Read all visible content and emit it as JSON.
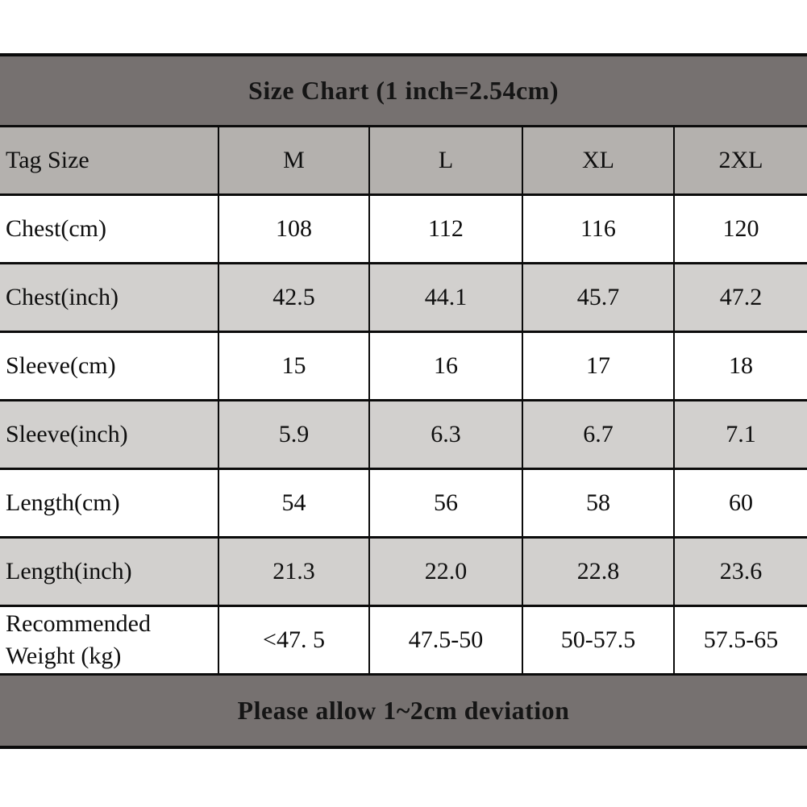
{
  "title": "Size Chart (1 inch=2.54cm)",
  "footer_note": "Please allow 1~2cm deviation",
  "colors": {
    "band_gray": "#767170",
    "header_row_gray": "#b4b1ae",
    "alt_row_gray": "#d2d0ce",
    "border_black": "#0b0b0b",
    "background": "#ffffff"
  },
  "chart_data": {
    "type": "table",
    "title": "Size Chart (1 inch=2.54cm)",
    "columns": [
      "Tag Size",
      "M",
      "L",
      "XL",
      "2XL"
    ],
    "rows": [
      [
        "Chest(cm)",
        "108",
        "112",
        "116",
        "120"
      ],
      [
        "Chest(inch)",
        "42.5",
        "44.1",
        "45.7",
        "47.2"
      ],
      [
        "Sleeve(cm)",
        "15",
        "16",
        "17",
        "18"
      ],
      [
        "Sleeve(inch)",
        "5.9",
        "6.3",
        "6.7",
        "7.1"
      ],
      [
        "Length(cm)",
        "54",
        "56",
        "58",
        "60"
      ],
      [
        "Length(inch)",
        "21.3",
        "22.0",
        "22.8",
        "23.6"
      ],
      [
        "Recommended Weight (kg)",
        "<47. 5",
        "47.5-50",
        "50-57.5",
        "57.5-65"
      ]
    ],
    "note": "Please allow 1~2cm deviation",
    "layout": "title band top, footer note band bottom, alternating white/gray rows, black grid borders"
  }
}
